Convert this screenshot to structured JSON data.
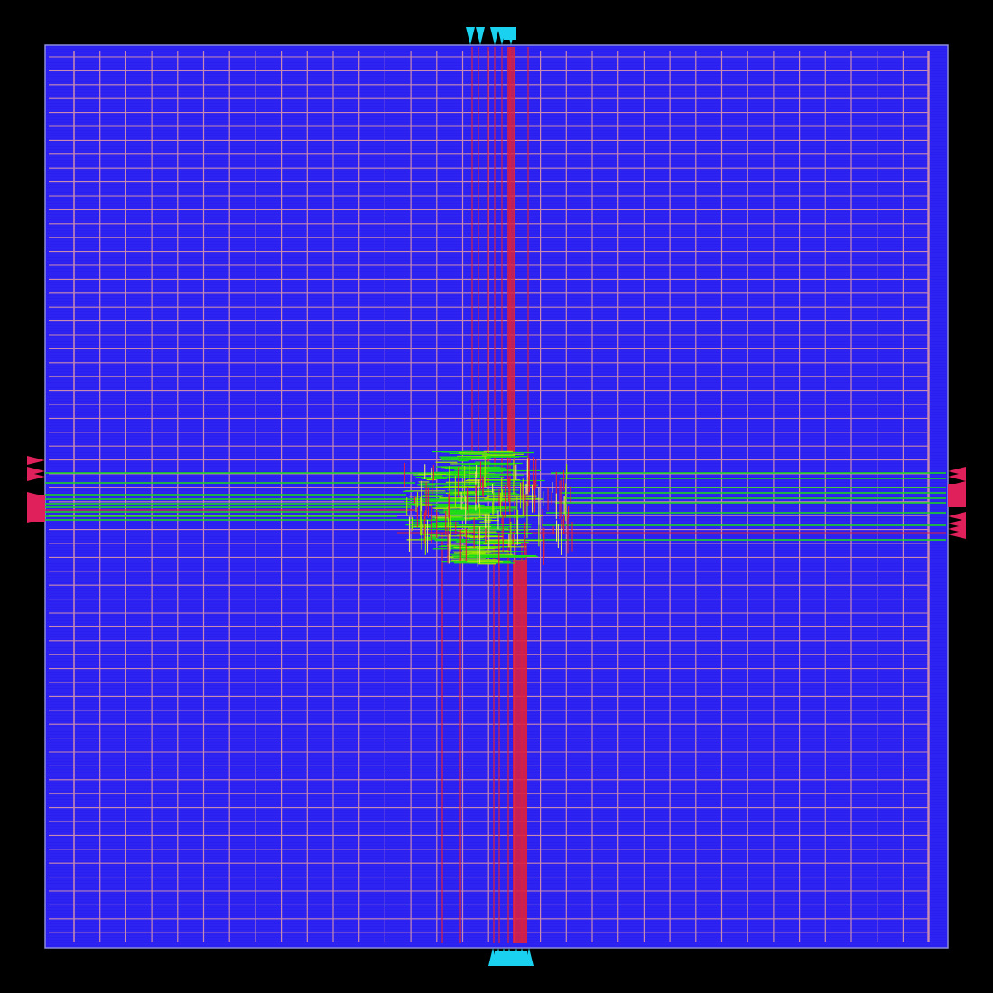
{
  "viewer": {
    "background": "#000000",
    "description_label": ""
  },
  "die": {
    "fill_color": "#2a1ff0",
    "row_color": "#4a4aff",
    "outline_color": "#8d8dd8"
  },
  "power_grid": {
    "stripe_color": "#c88ab0",
    "rail_color": "#c88ab0"
  },
  "routing": {
    "metal_h_color": "#19dc19",
    "metal_v_color": "#e0203a",
    "dense_core_color": "#9be600"
  },
  "io_pins": {
    "left_right_color": "#e0205a",
    "top_bottom_color": "#1ad2f0",
    "left_count": 14,
    "right_count": 14,
    "top_count": 5,
    "bottom_count": 7
  },
  "icons": {
    "pin_shape": "triangle-pin-icon"
  }
}
